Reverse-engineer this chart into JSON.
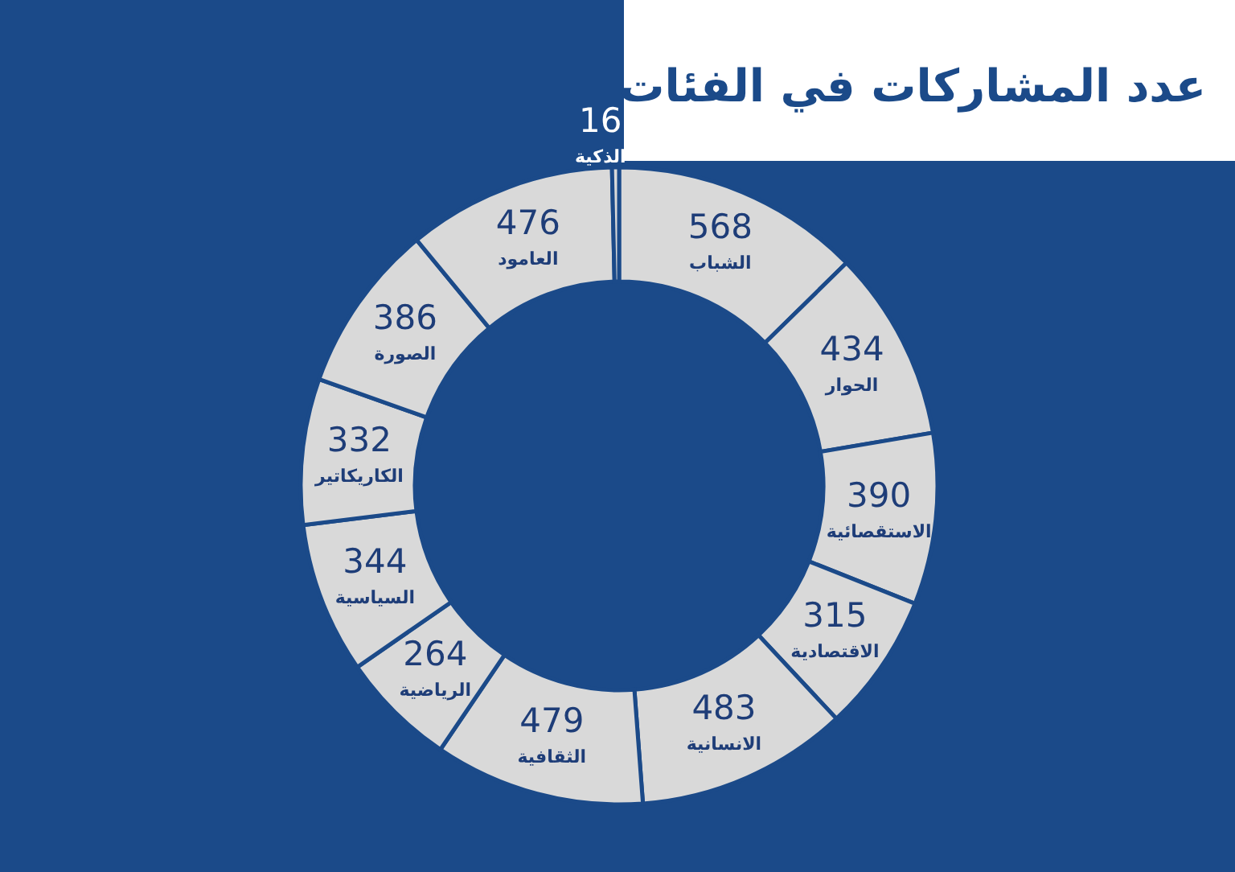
{
  "chart_data": {
    "type": "donut",
    "title": "عدد المشاركات في الفئات",
    "categories": [
      "الشباب",
      "الحوار",
      "الاستقصائية",
      "الاقتصادية",
      "الانسانية",
      "الثقافية",
      "الرياضية",
      "السياسية",
      "الكاريكاتير",
      "الصورة",
      "العامود",
      "الذكية"
    ],
    "values": [
      568,
      434,
      390,
      315,
      483,
      479,
      264,
      344,
      332,
      386,
      476,
      16
    ],
    "colors": [
      "#d9d9d9",
      "#d9d9d9",
      "#d9d9d9",
      "#d9d9d9",
      "#d9d9d9",
      "#d9d9d9",
      "#d9d9d9",
      "#d9d9d9",
      "#d9d9d9",
      "#d9d9d9",
      "#d9d9d9",
      "#d9d9d9"
    ],
    "data_labels": true
  }
}
